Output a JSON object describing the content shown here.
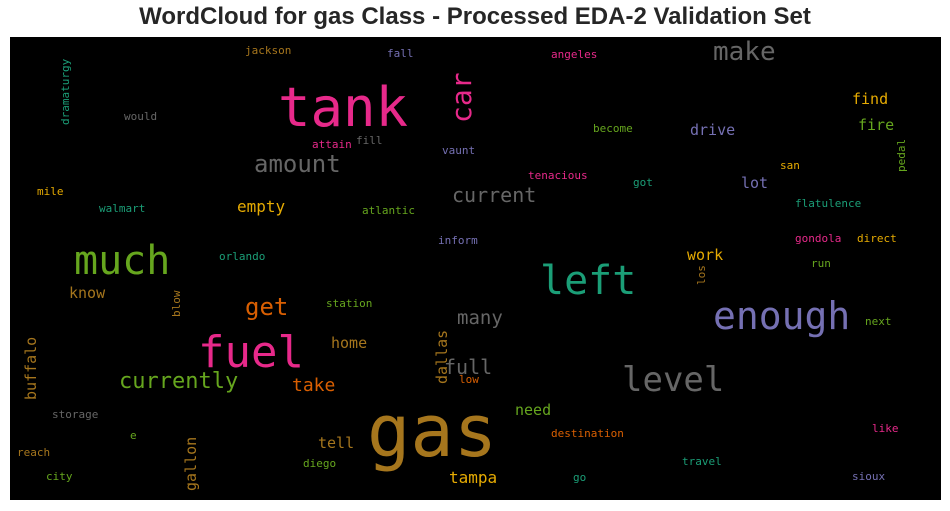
{
  "chart_data": {
    "type": "wordcloud",
    "title": "WordCloud for gas Class - Processed EDA-2 Validation Set",
    "background": "#000000",
    "colormap": "Dark2",
    "words": [
      {
        "text": "gas",
        "color": "#a6761d"
      },
      {
        "text": "tank",
        "color": "#e7298a"
      },
      {
        "text": "fuel",
        "color": "#e7298a"
      },
      {
        "text": "much",
        "color": "#66a61e"
      },
      {
        "text": "left",
        "color": "#1b9e77"
      },
      {
        "text": "enough",
        "color": "#7570b3"
      },
      {
        "text": "level",
        "color": "#666666"
      },
      {
        "text": "car",
        "color": "#e7298a"
      },
      {
        "text": "make",
        "color": "#666666"
      },
      {
        "text": "amount",
        "color": "#666666"
      },
      {
        "text": "currently",
        "color": "#66a61e"
      },
      {
        "text": "get",
        "color": "#d95f02"
      },
      {
        "text": "current",
        "color": "#666666"
      },
      {
        "text": "many",
        "color": "#666666"
      },
      {
        "text": "full",
        "color": "#666666"
      },
      {
        "text": "take",
        "color": "#d95f02"
      },
      {
        "text": "empty",
        "color": "#e6ab02"
      },
      {
        "text": "know",
        "color": "#a6761d"
      },
      {
        "text": "home",
        "color": "#a6761d"
      },
      {
        "text": "tell",
        "color": "#a6761d"
      },
      {
        "text": "need",
        "color": "#66a61e"
      },
      {
        "text": "tampa",
        "color": "#e6ab02"
      },
      {
        "text": "gallon",
        "color": "#a6761d"
      },
      {
        "text": "buffalo",
        "color": "#a6761d"
      },
      {
        "text": "dallas",
        "color": "#a6761d"
      },
      {
        "text": "work",
        "color": "#e6ab02"
      },
      {
        "text": "drive",
        "color": "#7570b3"
      },
      {
        "text": "lot",
        "color": "#7570b3"
      },
      {
        "text": "find",
        "color": "#e6ab02"
      },
      {
        "text": "fire",
        "color": "#66a61e"
      },
      {
        "text": "jackson",
        "color": "#a6761d"
      },
      {
        "text": "fall",
        "color": "#7570b3"
      },
      {
        "text": "angeles",
        "color": "#e7298a"
      },
      {
        "text": "dramaturgy",
        "color": "#1b9e77"
      },
      {
        "text": "would",
        "color": "#666666"
      },
      {
        "text": "attain",
        "color": "#e7298a"
      },
      {
        "text": "fill",
        "color": "#666666"
      },
      {
        "text": "vaunt",
        "color": "#7570b3"
      },
      {
        "text": "become",
        "color": "#66a61e"
      },
      {
        "text": "tenacious",
        "color": "#e7298a"
      },
      {
        "text": "got",
        "color": "#1b9e77"
      },
      {
        "text": "san",
        "color": "#e6ab02"
      },
      {
        "text": "pedal",
        "color": "#66a61e"
      },
      {
        "text": "mile",
        "color": "#e6ab02"
      },
      {
        "text": "walmart",
        "color": "#1b9e77"
      },
      {
        "text": "atlantic",
        "color": "#66a61e"
      },
      {
        "text": "flatulence",
        "color": "#1b9e77"
      },
      {
        "text": "inform",
        "color": "#7570b3"
      },
      {
        "text": "gondola",
        "color": "#e7298a"
      },
      {
        "text": "direct",
        "color": "#e6ab02"
      },
      {
        "text": "orlando",
        "color": "#1b9e77"
      },
      {
        "text": "run",
        "color": "#66a61e"
      },
      {
        "text": "los",
        "color": "#a6761d"
      },
      {
        "text": "blow",
        "color": "#a6761d"
      },
      {
        "text": "station",
        "color": "#66a61e"
      },
      {
        "text": "next",
        "color": "#66a61e"
      },
      {
        "text": "low",
        "color": "#d95f02"
      },
      {
        "text": "storage",
        "color": "#666666"
      },
      {
        "text": "e",
        "color": "#66a61e"
      },
      {
        "text": "destination",
        "color": "#d95f02"
      },
      {
        "text": "like",
        "color": "#e7298a"
      },
      {
        "text": "reach",
        "color": "#a6761d"
      },
      {
        "text": "diego",
        "color": "#66a61e"
      },
      {
        "text": "travel",
        "color": "#1b9e77"
      },
      {
        "text": "city",
        "color": "#66a61e"
      },
      {
        "text": "go",
        "color": "#1b9e77"
      },
      {
        "text": "sioux",
        "color": "#7570b3"
      }
    ]
  }
}
